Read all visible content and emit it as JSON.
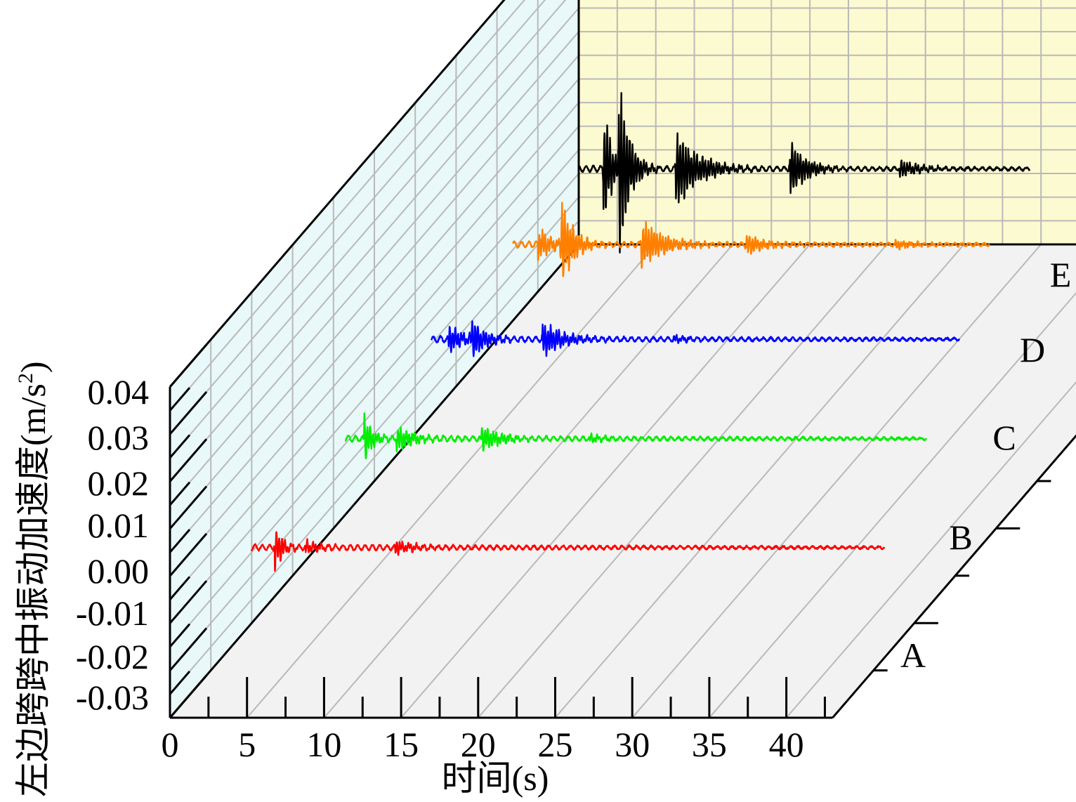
{
  "chart_data": {
    "type": "line",
    "title": "",
    "xlabel": "时间(s)",
    "ylabel": "左边跨跨中振动加速度(m/s²)",
    "ylabel_main": "左边跨跨中振动加速度(m/s",
    "ylabel_sup": "2",
    "ylabel_close": ")",
    "xlim": [
      0,
      43
    ],
    "ylim": [
      -0.03,
      0.04
    ],
    "x_ticks": [
      "0",
      "5",
      "10",
      "15",
      "20",
      "25",
      "30",
      "35",
      "40"
    ],
    "y_ticks": [
      "-0.03",
      "-0.02",
      "-0.01",
      "0.00",
      "0.01",
      "0.02",
      "0.03",
      "0.04"
    ],
    "categories": [
      "A",
      "B",
      "C",
      "D",
      "E"
    ],
    "grid": true,
    "series": [
      {
        "category": "A",
        "color": "#ff0000",
        "start": 3.7,
        "end": 44.8,
        "bursts": [
          {
            "t": 5.2,
            "amp": 0.0055,
            "dur": 0.9
          },
          {
            "t": 7.2,
            "amp": 0.0016,
            "dur": 1.5
          },
          {
            "t": 13.0,
            "amp": 0.0018,
            "dur": 2.2
          }
        ]
      },
      {
        "category": "B",
        "color": "#00ee00",
        "start": 3.7,
        "end": 41.4,
        "bursts": [
          {
            "t": 4.9,
            "amp": 0.0058,
            "dur": 1.0
          },
          {
            "t": 7.0,
            "amp": 0.003,
            "dur": 2.0
          },
          {
            "t": 12.5,
            "amp": 0.003,
            "dur": 2.2
          },
          {
            "t": 19.5,
            "amp": 0.001,
            "dur": 2.0
          }
        ]
      },
      {
        "category": "C",
        "color": "#0000ff",
        "start": 3.7,
        "end": 38.0,
        "bursts": [
          {
            "t": 4.8,
            "amp": 0.0035,
            "dur": 1.8
          },
          {
            "t": 6.3,
            "amp": 0.004,
            "dur": 1.6
          },
          {
            "t": 10.9,
            "amp": 0.004,
            "dur": 2.5
          },
          {
            "t": 19.4,
            "amp": 0.0009,
            "dur": 1.8
          }
        ]
      },
      {
        "category": "D",
        "color": "#ff8000",
        "start": 3.7,
        "end": 34.6,
        "bursts": [
          {
            "t": 5.3,
            "amp": 0.004,
            "dur": 1.6
          },
          {
            "t": 6.8,
            "amp": 0.011,
            "dur": 1.4
          },
          {
            "t": 12.0,
            "amp": 0.006,
            "dur": 2.6
          },
          {
            "t": 18.8,
            "amp": 0.0025,
            "dur": 2.2
          },
          {
            "t": 28.5,
            "amp": 0.0012,
            "dur": 2.0
          }
        ]
      },
      {
        "category": "E",
        "color": "#000000",
        "start": 3.7,
        "end": 33.0,
        "bursts": [
          {
            "t": 5.3,
            "amp": 0.015,
            "dur": 1.0
          },
          {
            "t": 6.3,
            "amp": 0.02,
            "dur": 1.2
          },
          {
            "t": 10.0,
            "amp": 0.009,
            "dur": 2.6
          },
          {
            "t": 17.4,
            "amp": 0.007,
            "dur": 1.8
          },
          {
            "t": 24.5,
            "amp": 0.002,
            "dur": 2.4
          }
        ]
      }
    ]
  }
}
